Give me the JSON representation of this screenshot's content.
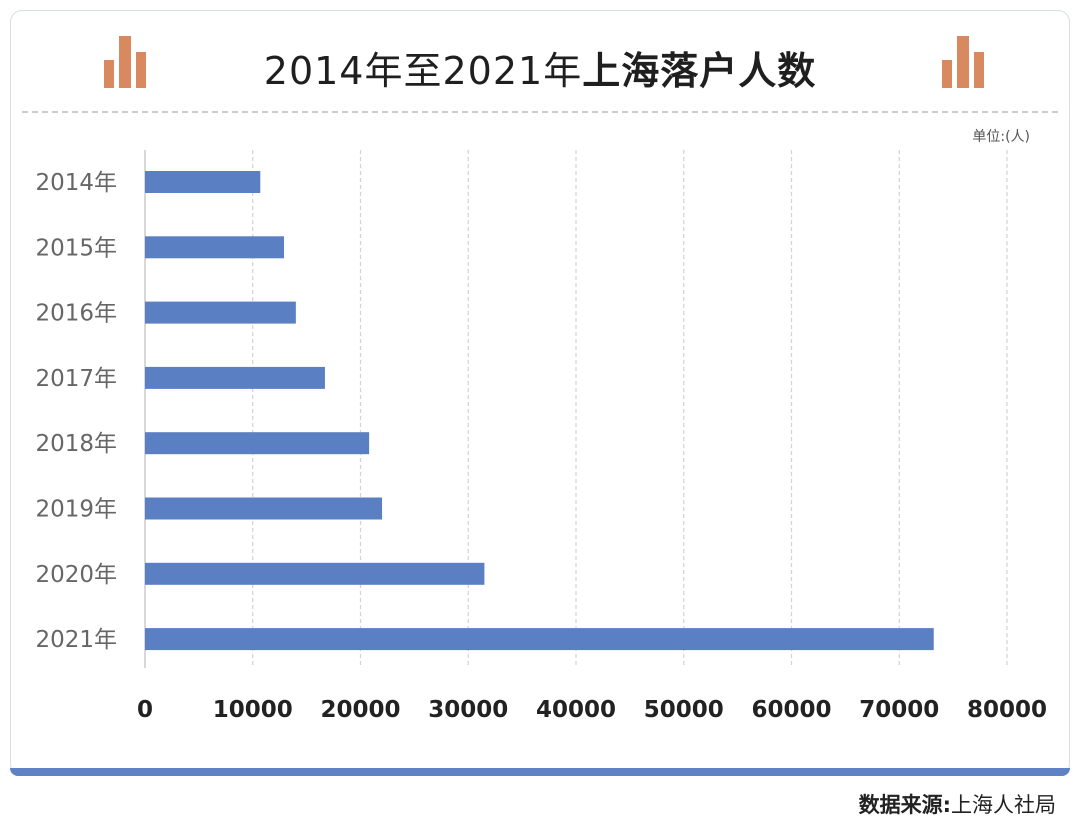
{
  "title": {
    "part1": "2014年至2021年",
    "part2": "上海落户人数"
  },
  "icons": {
    "left": "bar-chart-icon",
    "right": "bar-chart-icon"
  },
  "unit_label": "单位:(人)",
  "source": {
    "label": "数据来源:",
    "value": "上海人社局"
  },
  "colors": {
    "bar": "#5a7fc2",
    "frame_bar": "#5e82c4",
    "icon": "#d9895f",
    "grid": "#d2d2d2"
  },
  "chart_data": {
    "type": "bar",
    "orientation": "horizontal",
    "categories": [
      "2014年",
      "2015年",
      "2016年",
      "2017年",
      "2018年",
      "2019年",
      "2020年",
      "2021年"
    ],
    "values": [
      10700,
      12900,
      14000,
      16700,
      20800,
      22000,
      31500,
      73200
    ],
    "xlim": [
      0,
      80000
    ],
    "xticks": [
      "0",
      "10000",
      "20000",
      "30000",
      "40000",
      "50000",
      "60000",
      "70000",
      "80000"
    ],
    "grid": "vertical dashed",
    "legend": "none"
  }
}
